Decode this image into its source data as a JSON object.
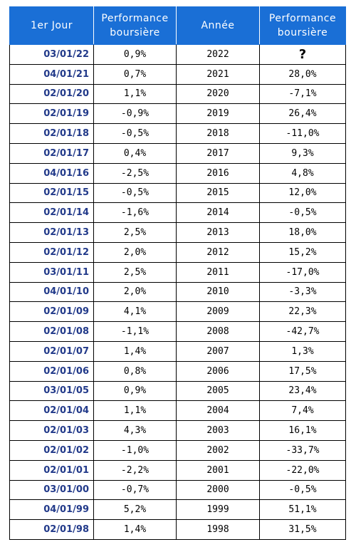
{
  "headers": {
    "col1": "1er Jour",
    "col2_line1": "Performance",
    "col2_line2": "boursière",
    "col3": "Année",
    "col4_line1": "Performance",
    "col4_line2": "boursière"
  },
  "rows": [
    {
      "date": "03/01/22",
      "day_perf": "0,9%",
      "year": "2022",
      "year_perf": "?"
    },
    {
      "date": "04/01/21",
      "day_perf": "0,7%",
      "year": "2021",
      "year_perf": "28,0%"
    },
    {
      "date": "02/01/20",
      "day_perf": "1,1%",
      "year": "2020",
      "year_perf": "-7,1%"
    },
    {
      "date": "02/01/19",
      "day_perf": "-0,9%",
      "year": "2019",
      "year_perf": "26,4%"
    },
    {
      "date": "02/01/18",
      "day_perf": "-0,5%",
      "year": "2018",
      "year_perf": "-11,0%"
    },
    {
      "date": "02/01/17",
      "day_perf": "0,4%",
      "year": "2017",
      "year_perf": "9,3%"
    },
    {
      "date": "04/01/16",
      "day_perf": "-2,5%",
      "year": "2016",
      "year_perf": "4,8%"
    },
    {
      "date": "02/01/15",
      "day_perf": "-0,5%",
      "year": "2015",
      "year_perf": "12,0%"
    },
    {
      "date": "02/01/14",
      "day_perf": "-1,6%",
      "year": "2014",
      "year_perf": "-0,5%"
    },
    {
      "date": "02/01/13",
      "day_perf": "2,5%",
      "year": "2013",
      "year_perf": "18,0%"
    },
    {
      "date": "02/01/12",
      "day_perf": "2,0%",
      "year": "2012",
      "year_perf": "15,2%"
    },
    {
      "date": "03/01/11",
      "day_perf": "2,5%",
      "year": "2011",
      "year_perf": "-17,0%"
    },
    {
      "date": "04/01/10",
      "day_perf": "2,0%",
      "year": "2010",
      "year_perf": "-3,3%"
    },
    {
      "date": "02/01/09",
      "day_perf": "4,1%",
      "year": "2009",
      "year_perf": "22,3%"
    },
    {
      "date": "02/01/08",
      "day_perf": "-1,1%",
      "year": "2008",
      "year_perf": "-42,7%"
    },
    {
      "date": "02/01/07",
      "day_perf": "1,4%",
      "year": "2007",
      "year_perf": "1,3%"
    },
    {
      "date": "02/01/06",
      "day_perf": "0,8%",
      "year": "2006",
      "year_perf": "17,5%"
    },
    {
      "date": "03/01/05",
      "day_perf": "0,9%",
      "year": "2005",
      "year_perf": "23,4%"
    },
    {
      "date": "02/01/04",
      "day_perf": "1,1%",
      "year": "2004",
      "year_perf": "7,4%"
    },
    {
      "date": "02/01/03",
      "day_perf": "4,3%",
      "year": "2003",
      "year_perf": "16,1%"
    },
    {
      "date": "02/01/02",
      "day_perf": "-1,0%",
      "year": "2002",
      "year_perf": "-33,7%"
    },
    {
      "date": "02/01/01",
      "day_perf": "-2,2%",
      "year": "2001",
      "year_perf": "-22,0%"
    },
    {
      "date": "03/01/00",
      "day_perf": "-0,7%",
      "year": "2000",
      "year_perf": "-0,5%"
    },
    {
      "date": "04/01/99",
      "day_perf": "5,2%",
      "year": "1999",
      "year_perf": "51,1%"
    },
    {
      "date": "02/01/98",
      "day_perf": "1,4%",
      "year": "1998",
      "year_perf": "31,5%"
    }
  ],
  "colors": {
    "header_bg": "#1a6fd6",
    "header_text": "#ffffff",
    "date_text": "#223a8a"
  }
}
